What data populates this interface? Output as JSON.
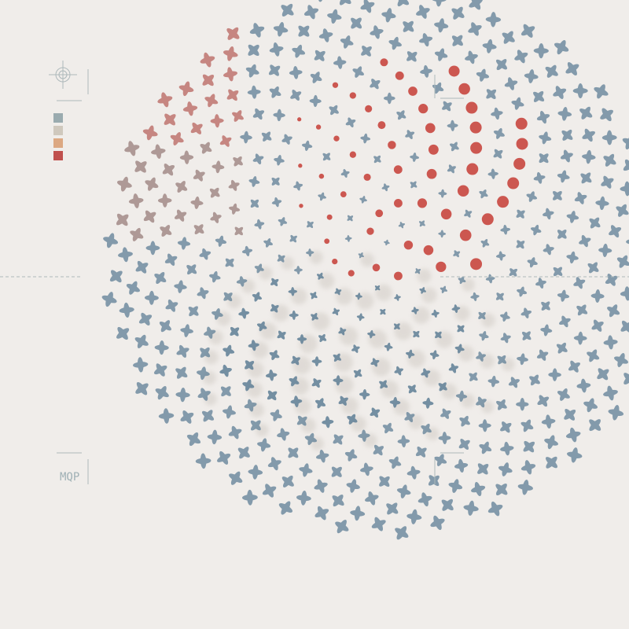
{
  "sidebar": {
    "label": "MQP"
  }
}
